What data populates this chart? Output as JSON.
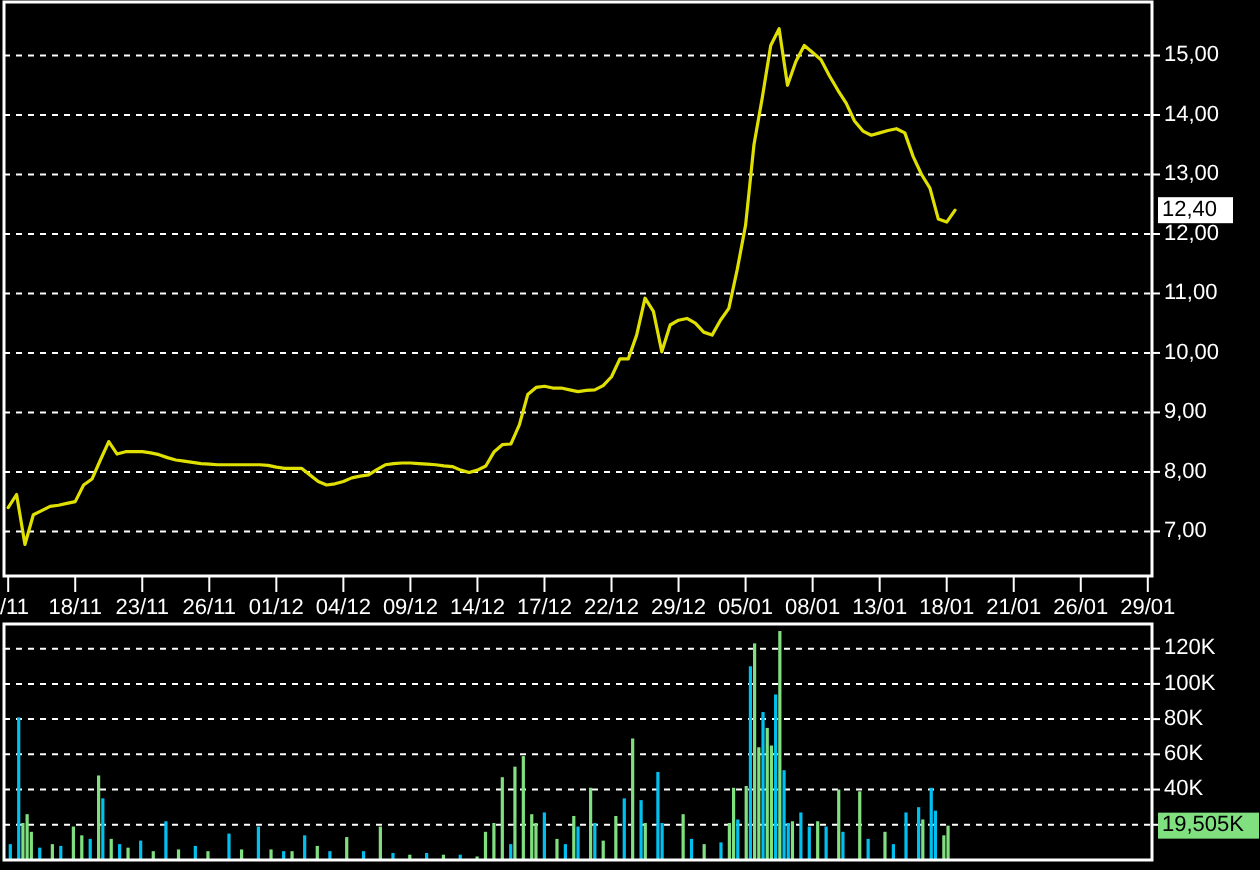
{
  "chart_data": [
    {
      "type": "line",
      "color": "#e0e000",
      "line_style": "solid",
      "grid": "y",
      "categories": [
        "/11",
        null,
        null,
        null,
        null,
        null,
        null,
        null,
        "18/11",
        null,
        null,
        null,
        null,
        null,
        null,
        null,
        "23/11",
        null,
        null,
        null,
        null,
        null,
        null,
        null,
        "26/11",
        null,
        null,
        null,
        null,
        null,
        null,
        null,
        "01/12",
        null,
        null,
        null,
        null,
        null,
        null,
        null,
        "04/12",
        null,
        null,
        null,
        null,
        null,
        null,
        null,
        "09/12",
        null,
        null,
        null,
        null,
        null,
        null,
        null,
        "14/12",
        null,
        null,
        null,
        null,
        null,
        null,
        null,
        "17/12",
        null,
        null,
        null,
        null,
        null,
        null,
        null,
        "22/12",
        null,
        null,
        null,
        null,
        null,
        null,
        null,
        "29/12",
        null,
        null,
        null,
        null,
        null,
        null,
        null,
        "05/01",
        null,
        null,
        null,
        null,
        null,
        null,
        null,
        "08/01",
        null,
        null,
        null,
        null,
        null,
        null,
        null,
        "13/01",
        null,
        null,
        null,
        null,
        null,
        null,
        null,
        "18/01",
        null,
        null,
        null,
        null,
        null,
        null,
        null,
        "21/01",
        null,
        null,
        null,
        null,
        null,
        null,
        null,
        "26/01",
        null,
        null,
        null,
        null,
        null,
        null,
        null,
        "29/01"
      ],
      "values": [
        7.4,
        7.62,
        6.78,
        7.28,
        7.35,
        7.42,
        7.44,
        7.47,
        7.5,
        7.78,
        7.88,
        8.2,
        8.51,
        8.3,
        8.34,
        8.34,
        8.34,
        8.32,
        8.29,
        8.24,
        8.2,
        8.18,
        8.16,
        8.14,
        8.13,
        8.12,
        8.12,
        8.12,
        8.12,
        8.12,
        8.12,
        8.11,
        8.08,
        8.06,
        8.06,
        8.06,
        7.95,
        7.84,
        7.78,
        7.8,
        7.84,
        7.9,
        7.93,
        7.95,
        8.04,
        8.12,
        8.14,
        8.15,
        8.15,
        8.14,
        8.13,
        8.12,
        8.1,
        8.09,
        8.03,
        7.99,
        8.03,
        8.1,
        8.34,
        8.46,
        8.47,
        8.79,
        9.3,
        9.42,
        9.44,
        9.41,
        9.41,
        9.38,
        9.35,
        9.37,
        9.38,
        9.45,
        9.6,
        9.9,
        9.9,
        10.3,
        10.92,
        10.7,
        10.02,
        10.47,
        10.55,
        10.58,
        10.5,
        10.35,
        10.3,
        10.55,
        10.75,
        11.4,
        12.15,
        13.5,
        14.3,
        15.17,
        15.45,
        14.5,
        14.9,
        15.17,
        15.05,
        14.93,
        14.66,
        14.42,
        14.2,
        13.9,
        13.73,
        13.66,
        13.7,
        13.74,
        13.77,
        13.7,
        13.3,
        13.0,
        12.77,
        12.25,
        12.2,
        12.4,
        null,
        null,
        null,
        null,
        null,
        null,
        null,
        null,
        null,
        null,
        null,
        null,
        null,
        null,
        null,
        null,
        null,
        null,
        null,
        null,
        null,
        null,
        null
      ],
      "ylim": [
        6.25,
        15.9
      ],
      "yticks": [
        {
          "value": 7,
          "label": "7,00"
        },
        {
          "value": 8,
          "label": "8,00"
        },
        {
          "value": 9,
          "label": "9,00"
        },
        {
          "value": 10,
          "label": "10,00"
        },
        {
          "value": 11,
          "label": "11,00"
        },
        {
          "value": 12,
          "label": "12,00"
        },
        {
          "value": 13,
          "label": "13,00"
        },
        {
          "value": 14,
          "label": "14,00"
        },
        {
          "value": 15,
          "label": "15,00"
        }
      ],
      "annotations": [
        "12,40"
      ]
    },
    {
      "type": "bar",
      "grid": "y",
      "tick_labels": "y",
      "categories": [
        null,
        null,
        null,
        null,
        null,
        null,
        null,
        null,
        null,
        null,
        null,
        null,
        null,
        null,
        null,
        null,
        null,
        null,
        null,
        null,
        null,
        null,
        null,
        null,
        null,
        null,
        null,
        null,
        null,
        null,
        null,
        null,
        null,
        null,
        null,
        null,
        null,
        null,
        null,
        null,
        null,
        null,
        null,
        null,
        null,
        null,
        null,
        null,
        null,
        null,
        null,
        null,
        null,
        null,
        null,
        null,
        null,
        null,
        null,
        null,
        null,
        null,
        null,
        null,
        null,
        null,
        null,
        null,
        null,
        null,
        null,
        null,
        null,
        null,
        null,
        null,
        null,
        null,
        null,
        null,
        null,
        null,
        null,
        null,
        null,
        null,
        null,
        null,
        null,
        null,
        null,
        null,
        null,
        null,
        null,
        null,
        null,
        null,
        null,
        null,
        null,
        null,
        null,
        null,
        null,
        null,
        null,
        null,
        null,
        null,
        null,
        null,
        null,
        null,
        null,
        null,
        null,
        null,
        null,
        null,
        null,
        null,
        null,
        null,
        null,
        null,
        null,
        null,
        null,
        null,
        null,
        null,
        null,
        null,
        null,
        null,
        null,
        null,
        null,
        null,
        null,
        null,
        null,
        null,
        null,
        null,
        null,
        null,
        null,
        null,
        null,
        null,
        null,
        null,
        null,
        null,
        null,
        null,
        null,
        null,
        null,
        null,
        null,
        null,
        null,
        null,
        null,
        null,
        null,
        null,
        null,
        null,
        null,
        null,
        null,
        null,
        null,
        null,
        null,
        null,
        null,
        null,
        null,
        null,
        null,
        null,
        null,
        null,
        null,
        null,
        null,
        null,
        null,
        null,
        null,
        null,
        null,
        null,
        null,
        null,
        null,
        null,
        null,
        null,
        null,
        null,
        null,
        null,
        null,
        null,
        null,
        null,
        null,
        null,
        null,
        null,
        null,
        null,
        null,
        null,
        null,
        null,
        null,
        null,
        null,
        null,
        null,
        null,
        null,
        null,
        null,
        null,
        null,
        null,
        null,
        null,
        null,
        null,
        null,
        null,
        null,
        null,
        null,
        null,
        null,
        null,
        null,
        null,
        null,
        null,
        null,
        null,
        null,
        null,
        null,
        null,
        null,
        null,
        null,
        null,
        null,
        null,
        null,
        null,
        null,
        null,
        null,
        null,
        null,
        null,
        null,
        null,
        null
      ],
      "values": [
        null,
        9,
        null,
        81,
        21,
        26,
        16,
        null,
        7,
        null,
        null,
        9,
        null,
        8,
        null,
        null,
        19,
        null,
        14,
        null,
        12,
        null,
        48,
        35,
        null,
        12,
        null,
        9,
        null,
        7,
        null,
        null,
        11,
        null,
        null,
        5,
        null,
        null,
        22,
        null,
        null,
        6,
        null,
        null,
        null,
        8,
        null,
        null,
        5,
        null,
        null,
        null,
        null,
        15,
        null,
        null,
        6,
        null,
        null,
        null,
        19,
        null,
        null,
        6,
        null,
        null,
        5,
        null,
        5,
        null,
        null,
        14,
        null,
        null,
        8,
        null,
        null,
        5,
        null,
        null,
        null,
        13,
        null,
        null,
        null,
        5,
        null,
        null,
        null,
        19,
        null,
        null,
        4,
        null,
        null,
        null,
        3,
        null,
        null,
        null,
        4,
        null,
        null,
        null,
        3,
        null,
        null,
        null,
        3,
        null,
        null,
        null,
        2,
        null,
        16,
        null,
        21,
        null,
        47,
        null,
        9,
        53,
        null,
        59,
        null,
        26,
        21,
        null,
        27,
        null,
        null,
        12,
        null,
        9,
        null,
        25,
        19,
        null,
        null,
        41,
        21,
        null,
        11,
        null,
        null,
        25,
        null,
        35,
        null,
        69,
        null,
        34,
        21,
        null,
        null,
        50,
        21,
        null,
        null,
        null,
        null,
        26,
        null,
        12,
        null,
        null,
        9,
        null,
        null,
        null,
        10,
        null,
        21,
        41,
        23,
        null,
        42,
        110,
        123,
        64,
        84,
        75,
        65,
        94,
        130,
        51,
        21,
        22,
        null,
        27,
        null,
        19,
        null,
        22,
        null,
        19,
        null,
        null,
        40,
        16,
        null,
        null,
        null,
        39,
        null,
        12,
        null,
        null,
        null,
        16,
        null,
        9,
        null,
        null,
        27,
        null,
        null,
        30,
        23,
        null,
        41,
        28,
        null,
        14,
        19.505,
        null,
        null,
        null,
        null,
        null,
        null,
        null,
        null,
        null,
        null,
        null,
        null,
        null,
        null,
        null,
        null,
        null,
        null,
        null,
        null,
        null,
        null,
        null,
        null,
        null,
        null,
        null,
        null,
        null,
        null,
        null,
        null,
        null,
        null,
        null,
        null,
        null,
        null,
        null,
        null,
        null,
        null,
        null,
        null,
        null,
        null,
        null,
        null
      ],
      "colors": [
        null,
        "#00c0f0",
        null,
        "#00c0f0",
        "#80e080",
        "#80e080",
        "#80e080",
        null,
        "#00c0f0",
        null,
        null,
        "#80e080",
        null,
        "#00c0f0",
        null,
        null,
        "#80e080",
        null,
        "#80e080",
        null,
        "#00c0f0",
        null,
        "#80e080",
        "#00c0f0",
        null,
        "#80e080",
        null,
        "#00c0f0",
        null,
        "#80e080",
        null,
        null,
        "#00c0f0",
        null,
        null,
        "#80e080",
        null,
        null,
        "#00c0f0",
        null,
        null,
        "#80e080",
        null,
        null,
        null,
        "#00c0f0",
        null,
        null,
        "#80e080",
        null,
        null,
        null,
        null,
        "#00c0f0",
        null,
        null,
        "#80e080",
        null,
        null,
        null,
        "#00c0f0",
        null,
        null,
        "#80e080",
        null,
        null,
        "#00c0f0",
        null,
        "#80e080",
        null,
        null,
        "#00c0f0",
        null,
        null,
        "#80e080",
        null,
        null,
        "#00c0f0",
        null,
        null,
        null,
        "#80e080",
        null,
        null,
        null,
        "#00c0f0",
        null,
        null,
        null,
        "#80e080",
        null,
        null,
        "#00c0f0",
        null,
        null,
        null,
        "#80e080",
        null,
        null,
        null,
        "#00c0f0",
        null,
        null,
        null,
        "#80e080",
        null,
        null,
        null,
        "#00c0f0",
        null,
        null,
        null,
        "#80e080",
        null,
        "#80e080",
        null,
        "#80e080",
        null,
        "#80e080",
        null,
        "#00c0f0",
        "#80e080",
        null,
        "#80e080",
        null,
        "#80e080",
        "#80e080",
        null,
        "#00c0f0",
        null,
        null,
        "#80e080",
        null,
        "#00c0f0",
        null,
        "#80e080",
        "#00c0f0",
        null,
        null,
        "#80e080",
        "#00c0f0",
        null,
        "#80e080",
        null,
        null,
        "#80e080",
        null,
        "#00c0f0",
        null,
        "#80e080",
        null,
        "#00c0f0",
        "#80e080",
        null,
        null,
        "#00c0f0",
        "#00c0f0",
        null,
        null,
        null,
        null,
        "#80e080",
        null,
        "#00c0f0",
        null,
        null,
        "#80e080",
        null,
        null,
        null,
        "#00c0f0",
        null,
        "#80e080",
        "#80e080",
        "#00c0f0",
        null,
        "#80e080",
        "#00c0f0",
        "#80e080",
        "#80e080",
        "#00c0f0",
        "#80e080",
        "#80e080",
        "#00c0f0",
        "#80e080",
        "#00c0f0",
        "#00c0f0",
        "#80e080",
        null,
        "#00c0f0",
        null,
        "#00c0f0",
        null,
        "#80e080",
        null,
        "#00c0f0",
        null,
        null,
        "#80e080",
        "#00c0f0",
        null,
        null,
        null,
        "#80e080",
        null,
        "#00c0f0",
        null,
        null,
        null,
        "#80e080",
        null,
        "#00c0f0",
        null,
        null,
        "#00c0f0",
        null,
        null,
        "#00c0f0",
        "#80e080",
        null,
        "#00c0f0",
        "#00c0f0",
        null,
        "#80e080",
        "#80e080",
        null,
        null,
        null,
        null,
        null,
        null,
        null,
        null,
        null,
        null,
        null,
        null,
        null,
        null,
        null,
        null,
        null,
        null,
        null,
        null,
        null,
        null,
        null,
        null,
        null,
        null,
        null,
        null,
        null,
        null,
        null,
        null,
        null,
        null,
        null,
        null,
        null,
        null,
        null,
        null,
        null,
        null,
        null,
        null,
        null,
        null,
        null,
        null
      ],
      "ylim": [
        0,
        134
      ],
      "yticks": [
        {
          "value": 20,
          "label": null
        },
        {
          "value": 40,
          "label": "40K"
        },
        {
          "value": 60,
          "label": "60K"
        },
        {
          "value": 80,
          "label": "80K"
        },
        {
          "value": 100,
          "label": "100K"
        },
        {
          "value": 120,
          "label": "120K"
        }
      ],
      "annotations": [
        "19,505K"
      ]
    }
  ]
}
